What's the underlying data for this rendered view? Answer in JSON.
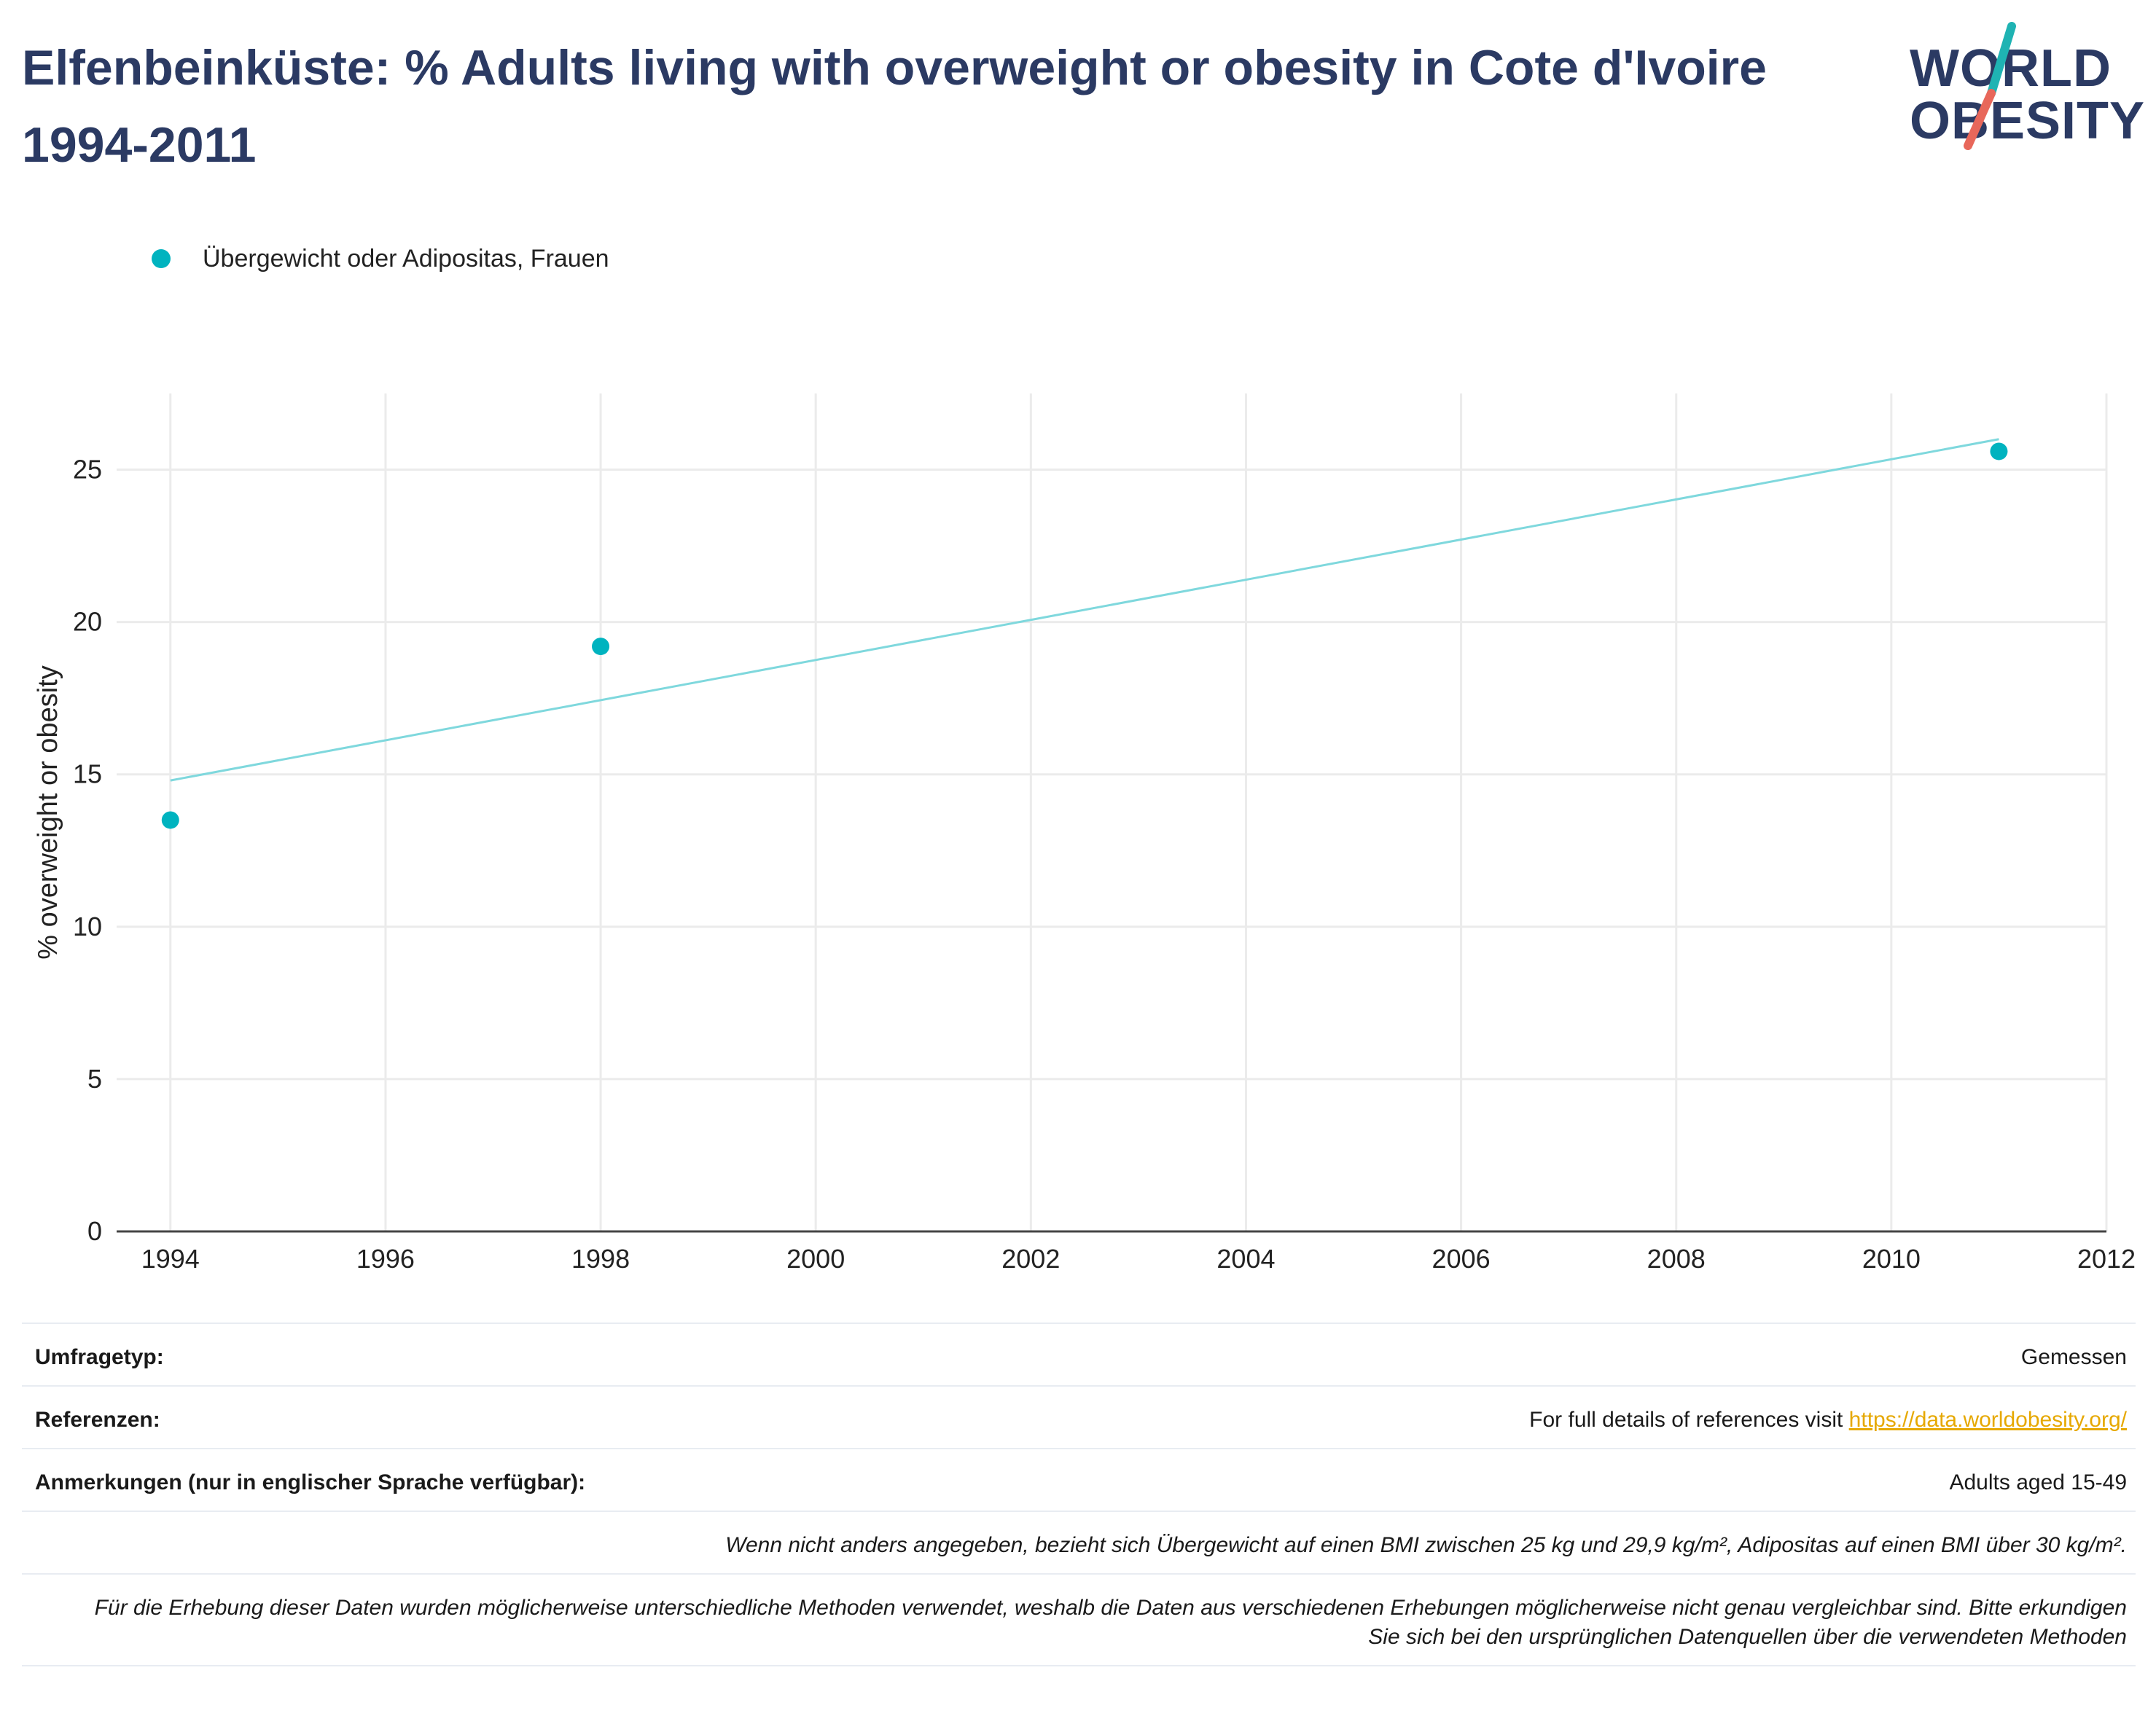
{
  "title": "Elfenbeinküste: % Adults living with overweight or obesity in Cote d'Ivoire 1994-2011",
  "logo": {
    "line1": "WORLD",
    "line2": "OBESITY",
    "accent_teal": "#1fb3b3",
    "accent_red": "#e8675a"
  },
  "legend": {
    "label": "Übergewicht oder Adipositas, Frauen",
    "color": "#00b3bf"
  },
  "chart_data": {
    "type": "scatter",
    "ylabel": "% overweight or obesity",
    "xlim": [
      1993.5,
      2012
    ],
    "ylim": [
      0,
      27.5
    ],
    "x_ticks": [
      1994,
      1996,
      1998,
      2000,
      2002,
      2004,
      2006,
      2008,
      2010,
      2012
    ],
    "y_ticks": [
      0,
      5,
      10,
      15,
      20,
      25
    ],
    "grid": true,
    "legend_position": "top-left",
    "series": [
      {
        "name": "Übergewicht oder Adipositas, Frauen",
        "color": "#00b3bf",
        "x": [
          1994,
          1998,
          2011
        ],
        "y": [
          13.5,
          19.2,
          25.6
        ]
      }
    ],
    "trendline": {
      "color": "#7fd8dd",
      "x": [
        1994,
        2011
      ],
      "y": [
        14.8,
        26.0
      ]
    }
  },
  "info": {
    "survey_type_label": "Umfragetyp:",
    "survey_type_value": "Gemessen",
    "references_label": "Referenzen:",
    "references_text": "For full details of references visit ",
    "references_link": "https://data.worldobesity.org/",
    "notes_label": "Anmerkungen (nur in englischer Sprache verfügbar):",
    "notes_value": "Adults aged 15-49",
    "footnote1": "Wenn nicht anders angegeben, bezieht sich Übergewicht auf einen BMI zwischen 25 kg und 29,9 kg/m², Adipositas auf einen BMI über 30 kg/m².",
    "footnote2": "Für die Erhebung dieser Daten wurden möglicherweise unterschiedliche Methoden verwendet, weshalb die Daten aus verschiedenen Erhebungen möglicherweise nicht genau vergleichbar sind. Bitte erkundigen Sie sich bei den ursprünglichen Datenquellen über die verwendeten Methoden"
  }
}
